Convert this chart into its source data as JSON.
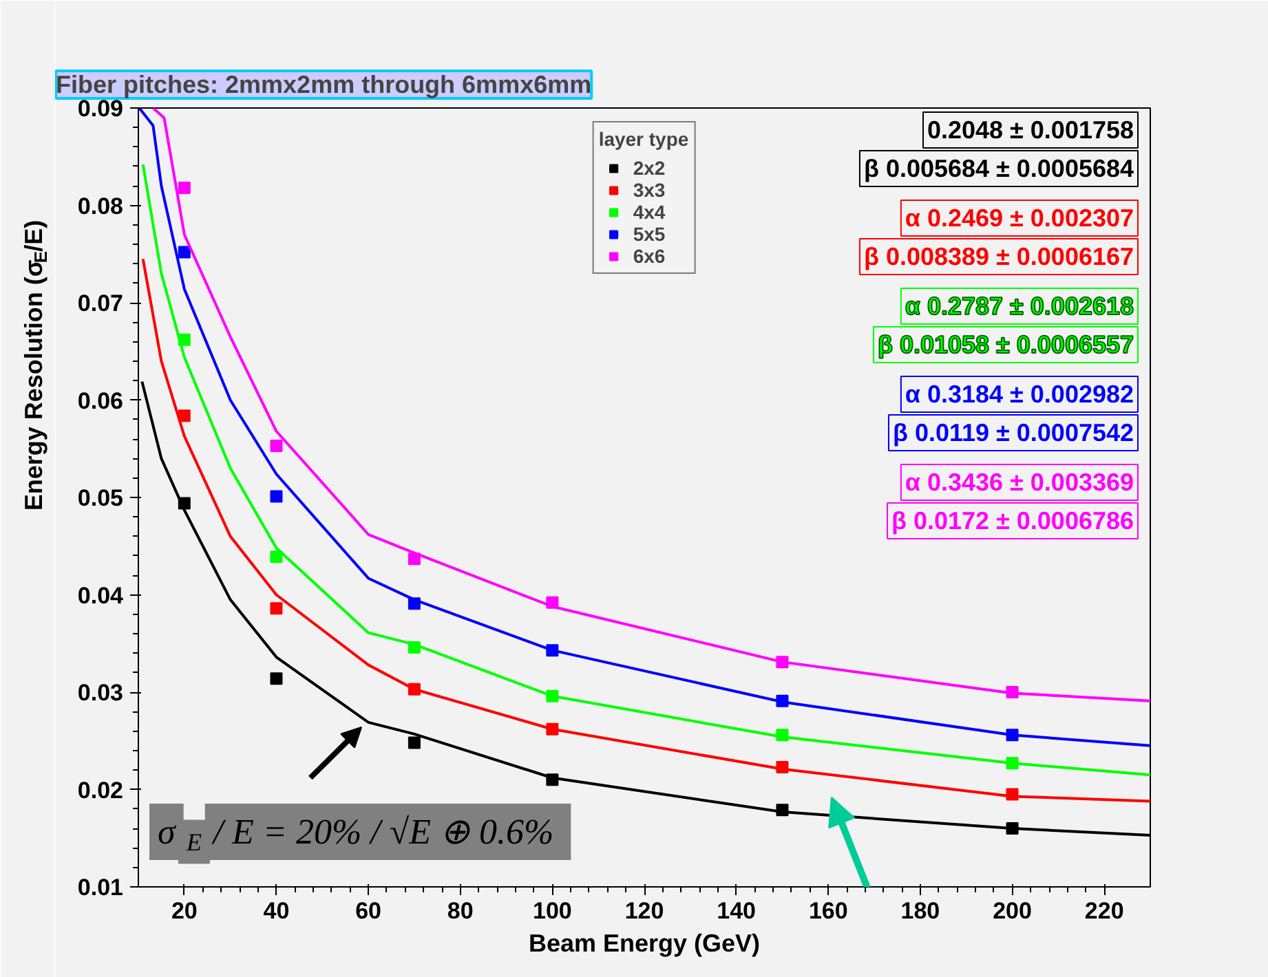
{
  "chart_data": {
    "type": "scatter",
    "title": "Fiber pitches: 2mmx2mm through 6mmx6mm",
    "xlabel": "Beam Energy (GeV)",
    "ylabel": "Energy Resolution (σ$_{E}$/E)",
    "legend_title": "layer type",
    "legend": "top",
    "marker": "square",
    "line_style": "solid",
    "grid": false,
    "xlim": [
      10,
      230
    ],
    "ylim": [
      0.01,
      0.09
    ],
    "xticks": [
      20,
      40,
      60,
      80,
      100,
      120,
      140,
      160,
      180,
      200,
      220
    ],
    "yticks": [
      0.01,
      0.02,
      0.03,
      0.04,
      0.05,
      0.06,
      0.07,
      0.08,
      0.09
    ],
    "x": [
      20,
      40,
      70,
      100,
      150,
      200
    ],
    "series": [
      {
        "name": "2x2",
        "color": "#000000",
        "values": [
          0.0494,
          0.0314,
          0.0248,
          0.021,
          0.0179,
          0.016
        ]
      },
      {
        "name": "3x3",
        "color": "#ff0000",
        "values": [
          0.0584,
          0.0386,
          0.0303,
          0.0262,
          0.0223,
          0.0195
        ]
      },
      {
        "name": "4x4",
        "color": "#00ff00",
        "values": [
          0.0662,
          0.0439,
          0.0346,
          0.0296,
          0.0256,
          0.0227
        ]
      },
      {
        "name": "5x5",
        "color": "#0000ff",
        "values": [
          0.0752,
          0.0501,
          0.0391,
          0.0343,
          0.0291,
          0.0256
        ]
      },
      {
        "name": "6x6",
        "color": "#ff00ff",
        "values": [
          0.0818,
          0.0553,
          0.0437,
          0.0392,
          0.0331,
          0.03
        ]
      },
      {
        "type": "line",
        "marker": "none",
        "color": "#000000",
        "x": [
          10.8,
          15,
          20,
          30,
          40,
          60,
          70,
          100,
          150,
          200,
          230
        ],
        "values": [
          0.0619,
          0.054,
          0.0487,
          0.0395,
          0.0336,
          0.0269,
          0.0257,
          0.0212,
          0.0177,
          0.016,
          0.0153
        ]
      },
      {
        "type": "line",
        "marker": "none",
        "color": "#ff0000",
        "x": [
          11,
          15,
          20,
          30,
          40,
          60,
          70,
          100,
          150,
          200,
          230
        ],
        "values": [
          0.0745,
          0.064,
          0.0563,
          0.046,
          0.04,
          0.0328,
          0.0303,
          0.0262,
          0.0221,
          0.0193,
          0.0188
        ]
      },
      {
        "type": "line",
        "marker": "none",
        "color": "#00ff00",
        "x": [
          11,
          15,
          20,
          30,
          40,
          60,
          70,
          100,
          150,
          200,
          230
        ],
        "values": [
          0.0842,
          0.073,
          0.0644,
          0.053,
          0.0448,
          0.0361,
          0.0349,
          0.0296,
          0.0254,
          0.0227,
          0.0215
        ]
      },
      {
        "type": "line",
        "marker": "none",
        "color": "#0000ff",
        "x": [
          10.2,
          13.2,
          15,
          20,
          30,
          40,
          60,
          70,
          100,
          150,
          200,
          230
        ],
        "values": [
          0.09,
          0.0882,
          0.082,
          0.0714,
          0.06,
          0.0524,
          0.0417,
          0.0395,
          0.0343,
          0.029,
          0.0256,
          0.0245
        ]
      },
      {
        "type": "line",
        "marker": "none",
        "color": "#ff00ff",
        "x": [
          13.2,
          15.6,
          20,
          30,
          40,
          60,
          70,
          100,
          150,
          200,
          230
        ],
        "values": [
          0.09,
          0.089,
          0.077,
          0.0665,
          0.0568,
          0.0462,
          0.0443,
          0.0388,
          0.0331,
          0.0299,
          0.0291
        ]
      }
    ],
    "annotations": [
      "0.2048 ± 0.001758",
      "β 0.005684 ± 0.0005684",
      "α 0.2469 ± 0.002307",
      "β 0.008389 ± 0.0006167",
      "α 0.2787 ± 0.002618",
      "β 0.01058 ± 0.0006557",
      "α 0.3184 ± 0.002982",
      "β 0.0119 ± 0.0007542",
      "α 0.3436 ± 0.003369",
      "β 0.0172 ± 0.0006786",
      "σ$_{E}$ / E = 20% / √E ⊕ 0.6%"
    ]
  }
}
